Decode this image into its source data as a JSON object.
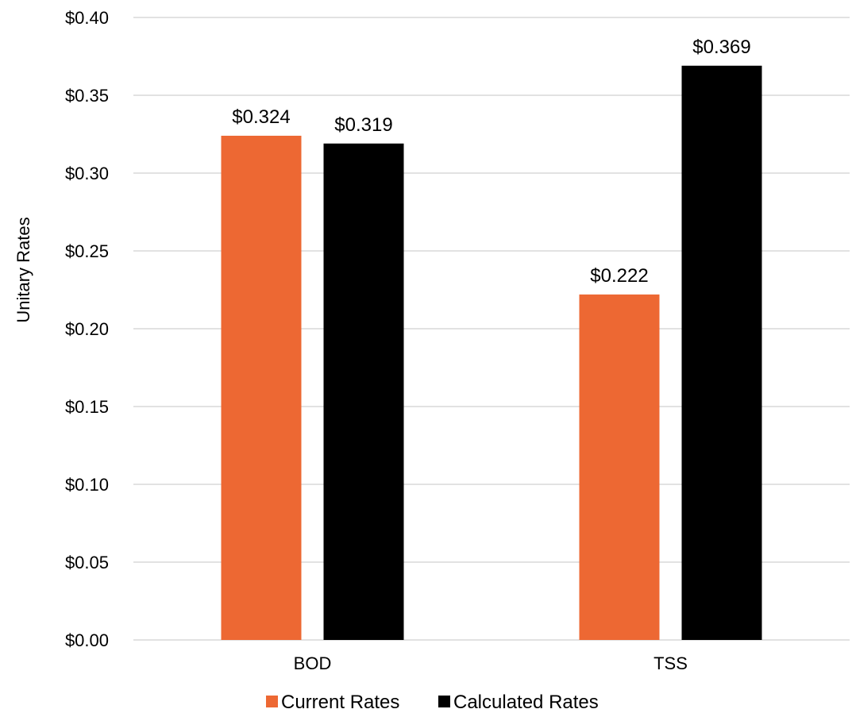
{
  "chart_data": {
    "type": "bar",
    "title": "",
    "xlabel": "",
    "ylabel": "Unitary Rates",
    "categories": [
      "BOD",
      "TSS"
    ],
    "series": [
      {
        "name": "Current Rates",
        "values": [
          0.324,
          0.222
        ],
        "labels": [
          "$0.324",
          "$0.222"
        ],
        "color": "#ED6833"
      },
      {
        "name": "Calculated Rates",
        "values": [
          0.319,
          0.369
        ],
        "labels": [
          "$0.319",
          "$0.369"
        ],
        "color": "#000000"
      }
    ],
    "ylim": [
      0,
      0.4
    ],
    "yticks": [
      {
        "value": 0.0,
        "label": "$0.00"
      },
      {
        "value": 0.05,
        "label": "$0.05"
      },
      {
        "value": 0.1,
        "label": "$0.10"
      },
      {
        "value": 0.15,
        "label": "$0.15"
      },
      {
        "value": 0.2,
        "label": "$0.20"
      },
      {
        "value": 0.25,
        "label": "$0.25"
      },
      {
        "value": 0.3,
        "label": "$0.30"
      },
      {
        "value": 0.35,
        "label": "$0.35"
      },
      {
        "value": 0.4,
        "label": "$0.40"
      }
    ],
    "grid": true,
    "gridline_color": "#D9D9D9",
    "legend_position": "bottom"
  }
}
